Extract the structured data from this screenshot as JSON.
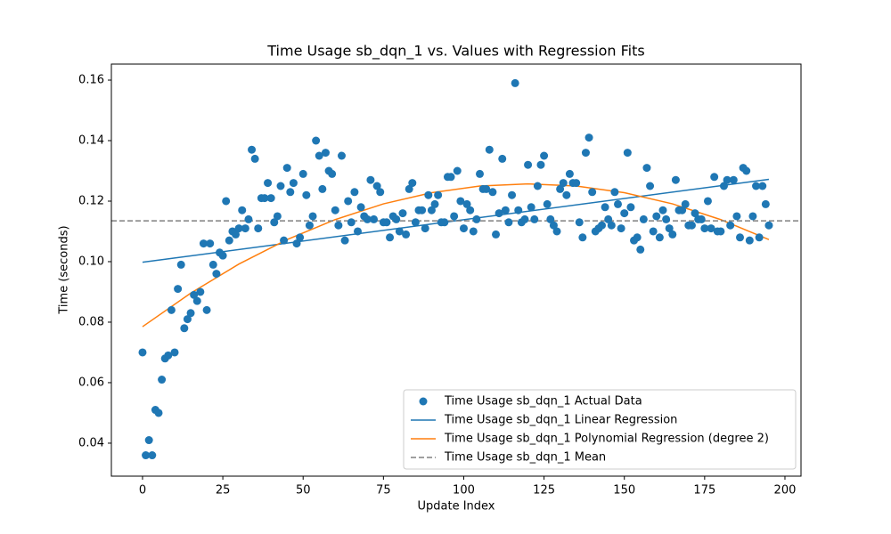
{
  "chart_data": {
    "type": "scatter",
    "title": "Time Usage sb_dqn_1 vs. Values with Regression Fits",
    "xlabel": "Update Index",
    "ylabel": "Time (seconds)",
    "xlim": [
      -9.7,
      205
    ],
    "ylim": [
      0.0291,
      0.1653
    ],
    "xticks": [
      0,
      25,
      50,
      75,
      100,
      125,
      150,
      175,
      200
    ],
    "yticks": [
      0.04,
      0.06,
      0.08,
      {
        "value": 0.1,
        "label": "0.10"
      },
      0.12,
      0.14,
      0.16
    ],
    "legend": "lower right",
    "series": [
      {
        "name": "Time Usage sb_dqn_1 Actual Data",
        "kind": "scatter",
        "color": "#1f77b4",
        "x": [
          0,
          1,
          2,
          3,
          4,
          5,
          6,
          7,
          8,
          9,
          10,
          11,
          12,
          13,
          14,
          15,
          16,
          17,
          18,
          19,
          20,
          21,
          22,
          23,
          24,
          25,
          26,
          27,
          28,
          29,
          30,
          31,
          32,
          33,
          34,
          35,
          36,
          37,
          38,
          39,
          40,
          41,
          42,
          43,
          44,
          45,
          46,
          47,
          48,
          49,
          50,
          51,
          52,
          53,
          54,
          55,
          56,
          57,
          58,
          59,
          60,
          61,
          62,
          63,
          64,
          65,
          66,
          67,
          68,
          69,
          70,
          71,
          72,
          73,
          74,
          75,
          76,
          77,
          78,
          79,
          80,
          81,
          82,
          83,
          84,
          85,
          86,
          87,
          88,
          89,
          90,
          91,
          92,
          93,
          94,
          95,
          96,
          97,
          98,
          99,
          100,
          101,
          102,
          103,
          104,
          105,
          106,
          107,
          108,
          109,
          110,
          111,
          112,
          113,
          114,
          115,
          116,
          117,
          118,
          119,
          120,
          121,
          122,
          123,
          124,
          125,
          126,
          127,
          128,
          129,
          130,
          131,
          132,
          133,
          134,
          135,
          136,
          137,
          138,
          139,
          140,
          141,
          142,
          143,
          144,
          145,
          146,
          147,
          148,
          149,
          150,
          151,
          152,
          153,
          154,
          155,
          156,
          157,
          158,
          159,
          160,
          161,
          162,
          163,
          164,
          165,
          166,
          167,
          168,
          169,
          170,
          171,
          172,
          173,
          174,
          175,
          176,
          177,
          178,
          179,
          180,
          181,
          182,
          183,
          184,
          185,
          186,
          187,
          188,
          189,
          190,
          191,
          192,
          193,
          194,
          195
        ],
        "values": [
          0.07,
          0.036,
          0.041,
          0.036,
          0.051,
          0.05,
          0.061,
          0.068,
          0.069,
          0.084,
          0.07,
          0.091,
          0.099,
          0.078,
          0.081,
          0.083,
          0.089,
          0.087,
          0.09,
          0.106,
          0.084,
          0.106,
          0.099,
          0.096,
          0.103,
          0.102,
          0.12,
          0.107,
          0.11,
          0.109,
          0.111,
          0.117,
          0.111,
          0.114,
          0.137,
          0.134,
          0.111,
          0.121,
          0.121,
          0.126,
          0.121,
          0.113,
          0.115,
          0.125,
          0.107,
          0.131,
          0.123,
          0.126,
          0.106,
          0.108,
          0.129,
          0.122,
          0.112,
          0.115,
          0.14,
          0.135,
          0.124,
          0.136,
          0.13,
          0.129,
          0.117,
          0.112,
          0.135,
          0.107,
          0.12,
          0.113,
          0.123,
          0.11,
          0.118,
          0.115,
          0.114,
          0.127,
          0.114,
          0.125,
          0.123,
          0.113,
          0.113,
          0.108,
          0.115,
          0.114,
          0.11,
          0.116,
          0.109,
          0.124,
          0.126,
          0.113,
          0.117,
          0.117,
          0.111,
          0.122,
          0.117,
          0.119,
          0.122,
          0.113,
          0.113,
          0.128,
          0.128,
          0.115,
          0.13,
          0.12,
          0.111,
          0.119,
          0.117,
          0.11,
          0.114,
          0.129,
          0.124,
          0.124,
          0.137,
          0.123,
          0.109,
          0.116,
          0.134,
          0.117,
          0.113,
          0.122,
          0.159,
          0.117,
          0.113,
          0.114,
          0.132,
          0.118,
          0.114,
          0.125,
          0.132,
          0.135,
          0.119,
          0.114,
          0.112,
          0.11,
          0.124,
          0.126,
          0.122,
          0.129,
          0.126,
          0.126,
          0.113,
          0.108,
          0.136,
          0.141,
          0.123,
          0.11,
          0.111,
          0.112,
          0.118,
          0.114,
          0.112,
          0.123,
          0.119,
          0.111,
          0.116,
          0.136,
          0.118,
          0.107,
          0.108,
          0.104,
          0.114,
          0.131,
          0.125,
          0.11,
          0.115,
          0.108,
          0.117,
          0.114,
          0.111,
          0.109,
          0.127,
          0.117,
          0.117,
          0.119,
          0.112,
          0.112,
          0.116,
          0.114,
          0.114,
          0.111,
          0.12,
          0.111,
          0.128,
          0.11,
          0.11,
          0.125,
          0.127,
          0.112,
          0.127,
          0.115,
          0.108,
          0.131,
          0.13,
          0.107,
          0.115,
          0.125,
          0.108,
          0.125,
          0.119,
          0.112
        ]
      },
      {
        "name": "Time Usage sb_dqn_1 Linear Regression",
        "kind": "line",
        "color": "#1f77b4",
        "x": [
          0,
          195
        ],
        "values": [
          0.0998,
          0.1272
        ]
      },
      {
        "name": "Time Usage sb_dqn_1 Polynomial Regression (degree 2)",
        "kind": "line",
        "color": "#ff7f0e",
        "x": [
          0,
          15,
          30,
          45,
          60,
          75,
          90,
          105,
          120,
          135,
          150,
          165,
          180,
          195
        ],
        "values": [
          0.0785,
          0.0896,
          0.0992,
          0.1073,
          0.1139,
          0.1191,
          0.1228,
          0.125,
          0.1257,
          0.125,
          0.1228,
          0.1191,
          0.1139,
          0.1073
        ]
      },
      {
        "name": "Time Usage sb_dqn_1 Mean",
        "kind": "hline",
        "color": "#808080",
        "value": 0.1135
      }
    ]
  }
}
